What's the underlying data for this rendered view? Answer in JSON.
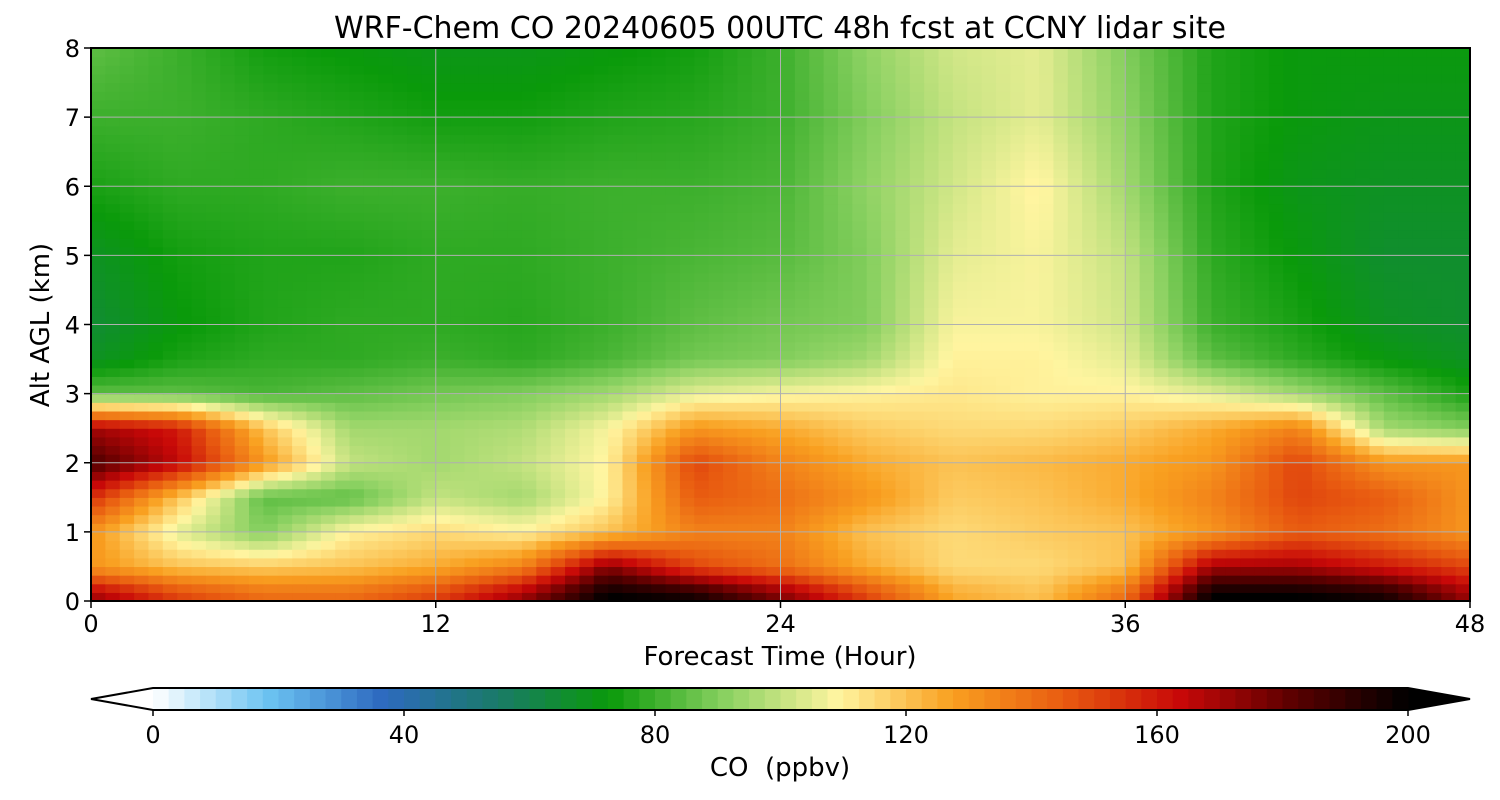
{
  "chart_data": {
    "type": "heatmap",
    "title": "WRF-Chem CO  20240605 00UTC 48h fcst at CCNY lidar site",
    "xlabel": "Forecast Time (Hour)",
    "ylabel": "Alt AGL (km)",
    "xlim": [
      0,
      48
    ],
    "ylim": [
      0,
      8
    ],
    "xticks": [
      0,
      12,
      24,
      36,
      48
    ],
    "yticks": [
      0,
      1,
      2,
      3,
      4,
      5,
      6,
      7,
      8
    ],
    "grid": true,
    "z_unit": "ppbv",
    "colorbar": {
      "label": "CO  (ppbv)",
      "range": [
        0,
        200
      ],
      "extend": "both",
      "ticks": [
        0,
        40,
        80,
        120,
        160,
        200
      ],
      "colors": [
        "#ffffff",
        "#6cc4f2",
        "#2e6ac0",
        "#1a7a6a",
        "#0a9a0a",
        "#88d060",
        "#fff5a0",
        "#f9a020",
        "#e85a10",
        "#c80808",
        "#5a0000",
        "#000000"
      ]
    },
    "x_hours": [
      0,
      3,
      6,
      9,
      12,
      15,
      18,
      21,
      24,
      27,
      30,
      33,
      36,
      39,
      42,
      45,
      48
    ],
    "altitudes_km": [
      0.1,
      0.5,
      1,
      1.5,
      2,
      2.5,
      3,
      3.5,
      4,
      5,
      6,
      7,
      8
    ],
    "co_ppbv": [
      [
        170,
        150,
        140,
        140,
        150,
        170,
        200,
        195,
        175,
        150,
        125,
        120,
        140,
        200,
        200,
        195,
        170
      ],
      [
        130,
        120,
        118,
        120,
        125,
        135,
        175,
        150,
        140,
        125,
        115,
        115,
        120,
        170,
        170,
        160,
        150
      ],
      [
        130,
        105,
        90,
        110,
        115,
        110,
        120,
        135,
        135,
        120,
        115,
        118,
        120,
        130,
        145,
        140,
        130
      ],
      [
        155,
        120,
        85,
        85,
        100,
        95,
        110,
        145,
        140,
        130,
        118,
        120,
        125,
        135,
        150,
        145,
        130
      ],
      [
        185,
        165,
        130,
        100,
        95,
        100,
        110,
        150,
        135,
        125,
        120,
        122,
        125,
        130,
        150,
        130,
        130
      ],
      [
        170,
        160,
        120,
        95,
        95,
        97,
        108,
        130,
        125,
        118,
        115,
        115,
        118,
        125,
        135,
        95,
        90
      ],
      [
        85,
        85,
        82,
        85,
        88,
        90,
        95,
        105,
        108,
        110,
        112,
        110,
        110,
        105,
        95,
        85,
        75
      ],
      [
        68,
        75,
        78,
        78,
        80,
        78,
        82,
        88,
        90,
        95,
        110,
        110,
        105,
        85,
        78,
        72,
        68
      ],
      [
        65,
        72,
        76,
        78,
        78,
        77,
        80,
        85,
        88,
        90,
        108,
        108,
        102,
        80,
        75,
        68,
        66
      ],
      [
        68,
        74,
        76,
        76,
        78,
        78,
        80,
        82,
        84,
        90,
        105,
        108,
        100,
        78,
        72,
        66,
        66
      ],
      [
        75,
        78,
        78,
        80,
        80,
        79,
        80,
        80,
        82,
        92,
        102,
        110,
        95,
        76,
        70,
        68,
        68
      ],
      [
        80,
        80,
        78,
        76,
        74,
        74,
        76,
        77,
        80,
        90,
        100,
        105,
        92,
        76,
        72,
        70,
        70
      ],
      [
        85,
        80,
        74,
        72,
        70,
        70,
        72,
        74,
        80,
        92,
        102,
        105,
        90,
        76,
        72,
        72,
        72
      ]
    ]
  }
}
